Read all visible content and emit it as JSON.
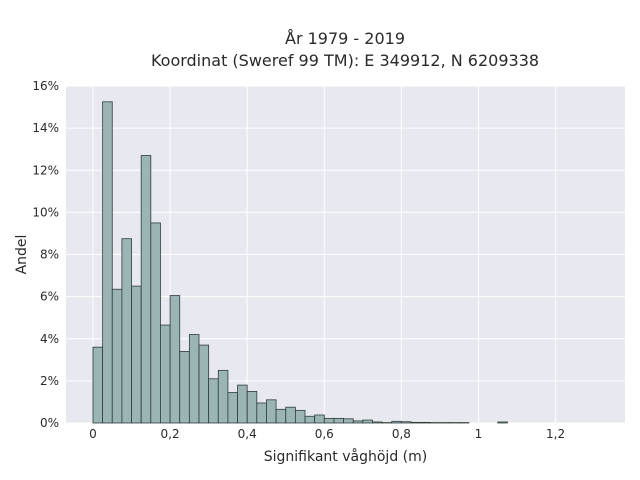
{
  "chart": {
    "title_line1": "År 1979 - 2019",
    "title_line2": "Koordinat (Sweref 99 TM): E 349912, N 6209338"
  },
  "chart_data": {
    "type": "bar",
    "subtype": "histogram",
    "title": "År 1979 - 2019\nKoordinat (Sweref 99 TM): E 349912, N 6209338",
    "xlabel": "Signifikant våghöjd (m)",
    "ylabel": "Andel",
    "xlim": [
      -0.07,
      1.38
    ],
    "ylim": [
      0,
      16
    ],
    "bin_width": 0.025,
    "x_ticks": [
      {
        "value": 0,
        "label": "0"
      },
      {
        "value": 0.2,
        "label": "0,2"
      },
      {
        "value": 0.4,
        "label": "0,4"
      },
      {
        "value": 0.6,
        "label": "0,6"
      },
      {
        "value": 0.8,
        "label": "0,8"
      },
      {
        "value": 1.0,
        "label": "1"
      },
      {
        "value": 1.2,
        "label": "1,2"
      }
    ],
    "y_ticks": [
      {
        "value": 0,
        "label": "0%"
      },
      {
        "value": 2,
        "label": "2%"
      },
      {
        "value": 4,
        "label": "4%"
      },
      {
        "value": 6,
        "label": "6%"
      },
      {
        "value": 8,
        "label": "8%"
      },
      {
        "value": 10,
        "label": "10%"
      },
      {
        "value": 12,
        "label": "12%"
      },
      {
        "value": 14,
        "label": "14%"
      },
      {
        "value": 16,
        "label": "16%"
      }
    ],
    "bins": [
      {
        "x0": 0.0,
        "value": 3.6
      },
      {
        "x0": 0.025,
        "value": 15.25
      },
      {
        "x0": 0.05,
        "value": 6.35
      },
      {
        "x0": 0.075,
        "value": 8.75
      },
      {
        "x0": 0.1,
        "value": 6.5
      },
      {
        "x0": 0.125,
        "value": 12.7
      },
      {
        "x0": 0.15,
        "value": 9.5
      },
      {
        "x0": 0.175,
        "value": 4.65
      },
      {
        "x0": 0.2,
        "value": 6.05
      },
      {
        "x0": 0.225,
        "value": 3.4
      },
      {
        "x0": 0.25,
        "value": 4.2
      },
      {
        "x0": 0.275,
        "value": 3.7
      },
      {
        "x0": 0.3,
        "value": 2.1
      },
      {
        "x0": 0.325,
        "value": 2.5
      },
      {
        "x0": 0.35,
        "value": 1.45
      },
      {
        "x0": 0.375,
        "value": 1.8
      },
      {
        "x0": 0.4,
        "value": 1.5
      },
      {
        "x0": 0.425,
        "value": 0.95
      },
      {
        "x0": 0.45,
        "value": 1.1
      },
      {
        "x0": 0.475,
        "value": 0.65
      },
      {
        "x0": 0.5,
        "value": 0.75
      },
      {
        "x0": 0.525,
        "value": 0.6
      },
      {
        "x0": 0.55,
        "value": 0.32
      },
      {
        "x0": 0.575,
        "value": 0.38
      },
      {
        "x0": 0.6,
        "value": 0.22
      },
      {
        "x0": 0.625,
        "value": 0.22
      },
      {
        "x0": 0.65,
        "value": 0.2
      },
      {
        "x0": 0.675,
        "value": 0.1
      },
      {
        "x0": 0.7,
        "value": 0.14
      },
      {
        "x0": 0.725,
        "value": 0.05
      },
      {
        "x0": 0.75,
        "value": 0.02
      },
      {
        "x0": 0.775,
        "value": 0.08
      },
      {
        "x0": 0.8,
        "value": 0.06
      },
      {
        "x0": 0.825,
        "value": 0.03
      },
      {
        "x0": 0.85,
        "value": 0.03
      },
      {
        "x0": 0.875,
        "value": 0.02
      },
      {
        "x0": 0.9,
        "value": 0.02
      },
      {
        "x0": 0.925,
        "value": 0.02
      },
      {
        "x0": 0.95,
        "value": 0.02
      },
      {
        "x0": 1.05,
        "value": 0.05
      }
    ],
    "grid": true,
    "legend": "none",
    "colors": {
      "plot_background": "#e8e8f0",
      "grid": "#ffffff",
      "bar_fill": "#9ab5b4",
      "bar_edge": "#2f3d3d"
    }
  }
}
